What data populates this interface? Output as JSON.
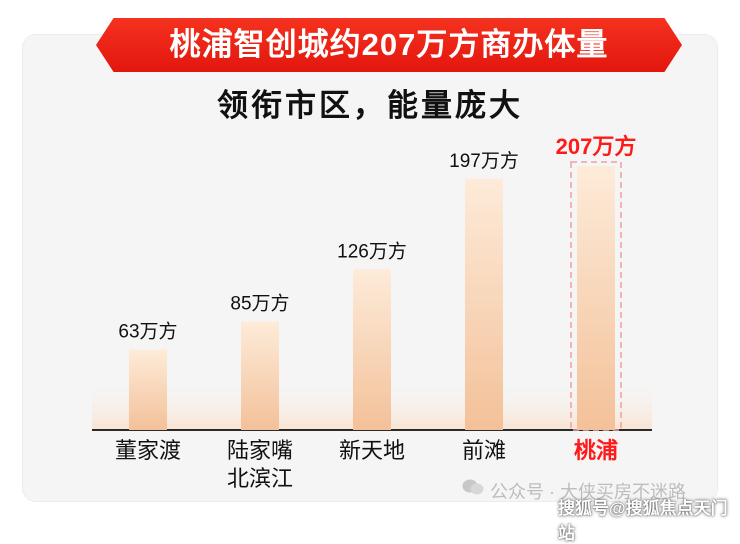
{
  "header": {
    "title": "桃浦智创城约207万方商办体量",
    "subtitle": "领衔市区，能量庞大"
  },
  "chart_data": {
    "type": "bar",
    "categories": [
      "董家渡",
      "陆家嘴\n北滨江",
      "新天地",
      "前滩",
      "桃浦"
    ],
    "values": [
      63,
      85,
      126,
      197,
      207
    ],
    "value_labels": [
      "63万方",
      "85万方",
      "126万方",
      "197万方",
      "207万方"
    ],
    "unit": "万方",
    "highlight_index": 4,
    "colors": {
      "bar_top": "#fbe3cc",
      "bar_bottom": "#f3c19a",
      "highlight": "#ff1a1a",
      "text": "#111111"
    }
  },
  "watermark": {
    "line1": "公众号 · 大侠买房不迷路",
    "line2": "搜狐号@搜狐焦点天门站"
  }
}
